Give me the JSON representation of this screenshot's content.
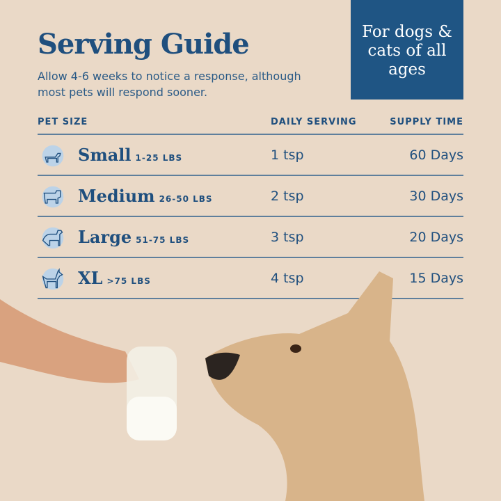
{
  "title": "Serving Guide",
  "subtitle": "Allow 4-6 weeks to notice a response, although most pets will respond sooner.",
  "badge": "For dogs & cats of all ages",
  "table": {
    "headers": [
      "PET SIZE",
      "DAILY SERVING",
      "SUPPLY TIME"
    ],
    "rows": [
      {
        "icon": "dachshund-icon",
        "size": "Small",
        "weight": "1-25 LBS",
        "serving": "1 tsp",
        "supply": "60 Days"
      },
      {
        "icon": "bulldog-icon",
        "size": "Medium",
        "weight": "26-50 LBS",
        "serving": "2 tsp",
        "supply": "30 Days"
      },
      {
        "icon": "retriever-icon",
        "size": "Large",
        "weight": "51-75 LBS",
        "serving": "3 tsp",
        "supply": "20 Days"
      },
      {
        "icon": "doberman-icon",
        "size": "XL",
        "weight": ">75 LBS",
        "serving": "4 tsp",
        "supply": "15 Days"
      }
    ]
  },
  "colors": {
    "brand_blue": "#1f5584",
    "background": "#ead9c7",
    "icon_circle": "#bcd3e8"
  }
}
